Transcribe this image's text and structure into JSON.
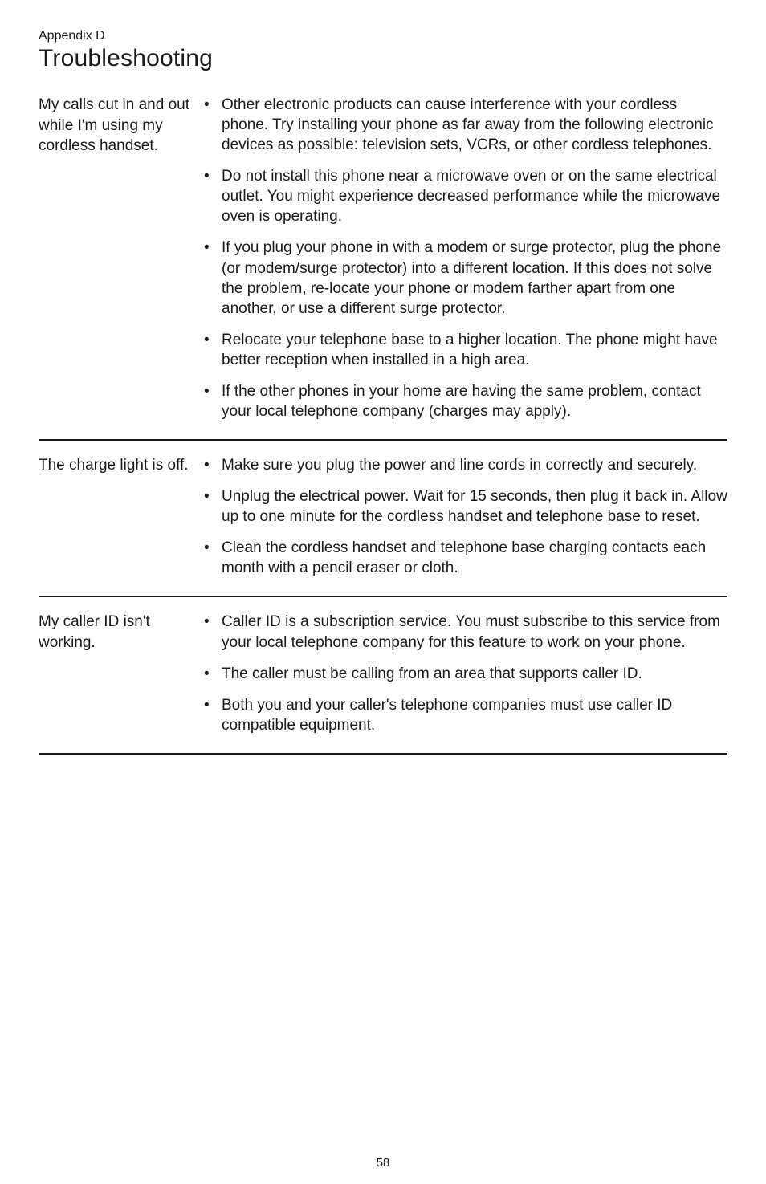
{
  "header": {
    "appendix": "Appendix D",
    "title": "Troubleshooting"
  },
  "sections": [
    {
      "problem": "My calls cut in and out while I'm using my cordless handset.",
      "bullets": [
        "Other electronic products can cause interference with your cordless phone. Try installing your phone as far away from the following electronic devices as possible: television sets, VCRs, or other cordless telephones.",
        "Do not install this phone near a microwave oven or on the same electrical outlet. You might experience decreased performance while the microwave oven is operating.",
        "If you plug your phone in with a modem or surge protector, plug the phone (or modem/surge protector) into a different location. If this does not solve the problem, re-locate your phone or modem farther apart from one another, or use a different surge protector.",
        "Relocate your telephone base to a higher location. The phone might have better reception when installed in a high area.",
        "If the other phones in your home are having the same problem, contact your local telephone company (charges may apply)."
      ]
    },
    {
      "problem": "The charge light is off.",
      "bullets": [
        "Make sure you plug the power and line cords in correctly and securely.",
        "Unplug the electrical power. Wait for 15 seconds, then plug it back in. Allow up to one minute for the cordless handset and telephone base to reset.",
        "Clean the cordless handset and telephone base charging contacts each month with a pencil eraser or cloth."
      ]
    },
    {
      "problem": "My caller ID isn't working.",
      "bullets": [
        "Caller ID is a subscription service. You must subscribe to this service from your local telephone company for this feature to work on your phone.",
        "The caller must be calling from an area that supports caller ID.",
        "Both you and your caller's telephone companies must use caller ID compatible equipment."
      ]
    }
  ],
  "page_number": "58",
  "styles": {
    "background_color": "#ffffff",
    "text_color": "#1a1a1a",
    "divider_color": "#1a1a1a",
    "appendix_fontsize": 16,
    "title_fontsize": 30,
    "body_fontsize": 19,
    "pagenum_fontsize": 15
  }
}
